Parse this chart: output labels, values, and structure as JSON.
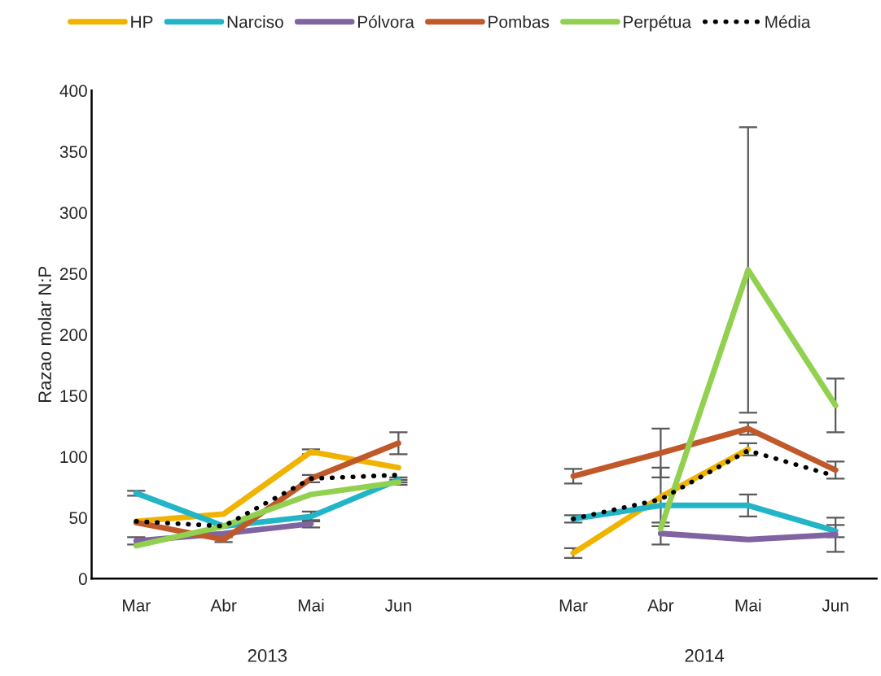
{
  "chart_data": {
    "type": "line",
    "ylabel": "Razao molar N:P",
    "categories": [
      "Mar",
      "Abr",
      "Mai",
      "Jun",
      null,
      "Mar",
      "Abr",
      "Mai",
      "Jun"
    ],
    "series": [
      {
        "name": "HP",
        "color": "#f0b400",
        "values": [
          47,
          53,
          104,
          91,
          null,
          21,
          67,
          106,
          null
        ],
        "errors": [
          null,
          null,
          2,
          null,
          null,
          4,
          24,
          5,
          null
        ]
      },
      {
        "name": "Narciso",
        "color": "#22b5c8",
        "values": [
          70,
          43,
          51,
          81,
          null,
          49,
          60,
          60,
          39
        ],
        "errors": [
          2,
          null,
          4,
          2,
          null,
          3,
          null,
          9,
          5
        ]
      },
      {
        "name": "Pólvora",
        "color": "#8064a2",
        "values": [
          31,
          37,
          45,
          null,
          null,
          null,
          37,
          32,
          36
        ],
        "errors": [
          3,
          null,
          3,
          null,
          null,
          null,
          9,
          null,
          14
        ]
      },
      {
        "name": "Pombas",
        "color": "#c0582a",
        "values": [
          46,
          32,
          82,
          111,
          null,
          84,
          103,
          123,
          89
        ],
        "errors": [
          null,
          2,
          3,
          9,
          null,
          6,
          20,
          5,
          7
        ]
      },
      {
        "name": "Perpétua",
        "color": "#92d050",
        "values": [
          27,
          43,
          69,
          79,
          null,
          null,
          41,
          253,
          142
        ],
        "errors": [
          null,
          null,
          null,
          2,
          null,
          null,
          null,
          117,
          22
        ]
      },
      {
        "name": "Média",
        "color": "#000000",
        "line_style": "dotted",
        "values": [
          47,
          43,
          82,
          85,
          null,
          49,
          65,
          105,
          84
        ]
      }
    ],
    "ylim": [
      0,
      400
    ],
    "yticks": [
      0,
      50,
      100,
      150,
      200,
      250,
      300,
      350,
      400
    ],
    "annotations": [
      "2013",
      "2014"
    ],
    "legend": "top",
    "grid": false
  }
}
